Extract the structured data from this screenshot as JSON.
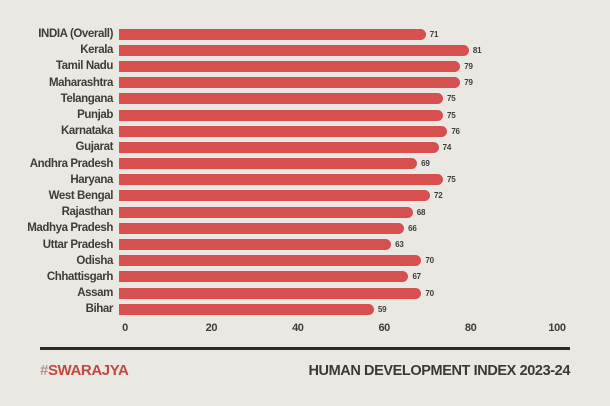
{
  "background_color": "#e9e8e2",
  "text_color": "#3e3c38",
  "chart_data": {
    "type": "bar",
    "orientation": "horizontal",
    "title": "HUMAN DEVELOPMENT INDEX 2023-24",
    "categories": [
      "INDIA (Overall)",
      "Kerala",
      "Tamil Nadu",
      "Maharashtra",
      "Telangana",
      "Punjab",
      "Karnataka",
      "Gujarat",
      "Andhra Pradesh",
      "Haryana",
      "West Bengal",
      "Rajasthan",
      "Madhya Pradesh",
      "Uttar Pradesh",
      "Odisha",
      "Chhattisgarh",
      "Assam",
      "Bihar"
    ],
    "values": [
      71,
      81,
      79,
      79,
      75,
      75,
      76,
      74,
      69,
      75,
      72,
      68,
      66,
      63,
      70,
      67,
      70,
      59
    ],
    "xlabel": "",
    "ylabel": "",
    "xlim": [
      0,
      100
    ],
    "x_ticks": [
      "0",
      "20",
      "40",
      "60",
      "80",
      "100"
    ],
    "x_tick_values": [
      0,
      20,
      40,
      60,
      80,
      100
    ],
    "bar_color": "#d65050",
    "grid": false,
    "value_labels_shown": true,
    "legend": "none"
  },
  "footer": {
    "brand_hash": "#",
    "brand_name": "SWARAJYA",
    "brand_color": "#c2473f",
    "title": "HUMAN DEVELOPMENT INDEX 2023-24"
  }
}
